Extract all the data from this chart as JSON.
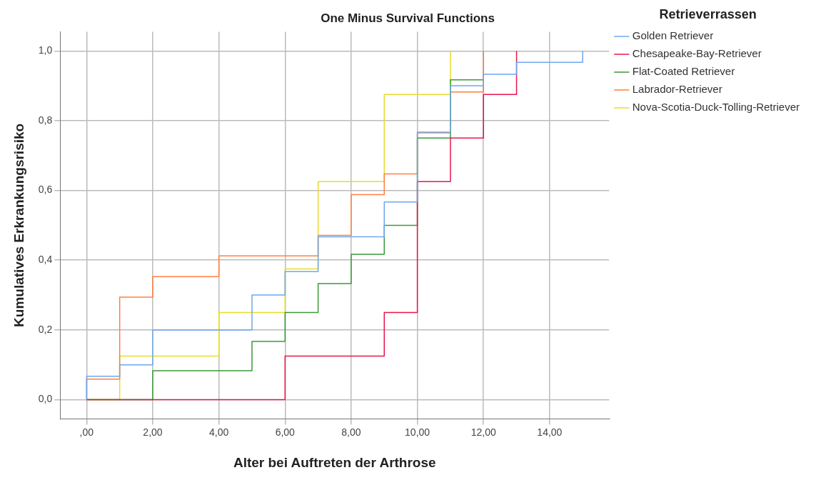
{
  "chart_data": {
    "type": "step",
    "title": "One Minus Survival Functions",
    "xlabel": "Alter bei Auftreten der Arthrose",
    "ylabel": "Kumulatives Erkrankungsrisiko",
    "legend_title": "Retrieverrassen",
    "legend": "top right",
    "grid": true,
    "marker": "none",
    "line_style": "solid",
    "xlim": [
      -0.8,
      15.8
    ],
    "xticks": [
      {
        "value": 0,
        "label": ",00"
      },
      {
        "value": 2,
        "label": "2,00"
      },
      {
        "value": 4,
        "label": "4,00"
      },
      {
        "value": 6,
        "label": "6,00"
      },
      {
        "value": 8,
        "label": "8,00"
      },
      {
        "value": 10,
        "label": "10,00"
      },
      {
        "value": 12,
        "label": "12,00"
      },
      {
        "value": 14,
        "label": "14,00"
      }
    ],
    "ylim": [
      -0.055,
      1.055
    ],
    "yticks": [
      {
        "value": 0,
        "label": "0,0"
      },
      {
        "value": 0.2,
        "label": "0,2"
      },
      {
        "value": 0.4,
        "label": "0,4"
      },
      {
        "value": 0.6,
        "label": "0,6"
      },
      {
        "value": 0.8,
        "label": "0,8"
      },
      {
        "value": 1,
        "label": "1,0"
      }
    ],
    "series": [
      {
        "name": "Golden Retriever",
        "color": "#6fa8f0",
        "x": [
          0,
          0,
          1,
          2,
          5,
          6,
          7,
          9,
          10,
          11,
          12,
          13,
          15
        ],
        "values": [
          0,
          0.067,
          0.1,
          0.2,
          0.3,
          0.367,
          0.467,
          0.567,
          0.767,
          0.9,
          0.933,
          0.967,
          1.0
        ]
      },
      {
        "name": "Chesapeake-Bay-Retriever",
        "color": "#e8174b",
        "x": [
          0,
          6,
          9,
          10,
          11,
          12,
          13
        ],
        "values": [
          0,
          0.125,
          0.25,
          0.625,
          0.75,
          0.875,
          1.0
        ]
      },
      {
        "name": "Flat-Coated Retriever",
        "color": "#3a9a3a",
        "x": [
          0,
          2,
          5,
          6,
          7,
          8,
          9,
          10,
          11,
          12
        ],
        "values": [
          0,
          0.083,
          0.167,
          0.25,
          0.333,
          0.417,
          0.5,
          0.75,
          0.917,
          0.917
        ]
      },
      {
        "name": "Labrador-Retriever",
        "color": "#ff8040",
        "x": [
          0,
          0,
          1,
          2,
          4,
          7,
          8,
          9,
          10,
          11,
          12
        ],
        "values": [
          0,
          0.059,
          0.294,
          0.353,
          0.412,
          0.471,
          0.588,
          0.647,
          0.765,
          0.882,
          1.0
        ]
      },
      {
        "name": "Nova-Scotia-Duck-Tolling-Retriever",
        "color": "#e8dc2a",
        "x": [
          0,
          1,
          4,
          6,
          7,
          9,
          11
        ],
        "values": [
          0,
          0.125,
          0.25,
          0.375,
          0.625,
          0.875,
          1.0
        ]
      }
    ]
  }
}
